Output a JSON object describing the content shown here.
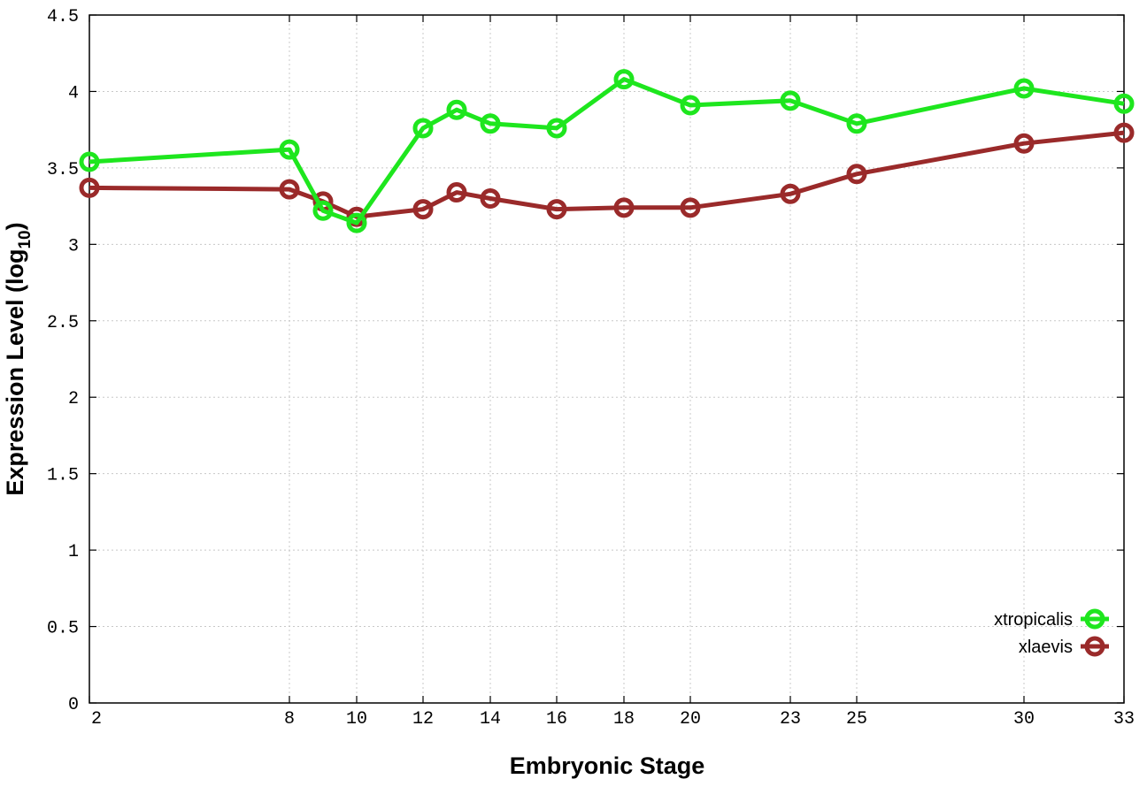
{
  "chart_data": {
    "type": "line",
    "xlabel": "Embryonic Stage",
    "ylabel": "Expression Level (log",
    "ylabel_subscript": "10",
    "ylabel_suffix": ")",
    "x_ticks": [
      "2",
      "8",
      "10",
      "12",
      "14",
      "16",
      "18",
      "20",
      "23",
      "25",
      "30",
      "33"
    ],
    "y_ticks": [
      "0",
      "0.5",
      "1",
      "1.5",
      "2",
      "2.5",
      "3",
      "3.5",
      "4",
      "4.5"
    ],
    "ylim": [
      0,
      4.5
    ],
    "grid": true,
    "legend_position": "bottom-right",
    "series": [
      {
        "name": "xtropicalis",
        "color": "#1ee61e",
        "points": [
          [
            2,
            3.54
          ],
          [
            8,
            3.62
          ],
          [
            9,
            3.22
          ],
          [
            10,
            3.14
          ],
          [
            12,
            3.76
          ],
          [
            13,
            3.88
          ],
          [
            14,
            3.79
          ],
          [
            16,
            3.76
          ],
          [
            18,
            4.08
          ],
          [
            20,
            3.91
          ],
          [
            23,
            3.94
          ],
          [
            25,
            3.79
          ],
          [
            30,
            4.02
          ],
          [
            33,
            3.92
          ]
        ]
      },
      {
        "name": "xlaevis",
        "color": "#9a2a2a",
        "points": [
          [
            2,
            3.37
          ],
          [
            8,
            3.36
          ],
          [
            9,
            3.28
          ],
          [
            10,
            3.18
          ],
          [
            12,
            3.23
          ],
          [
            13,
            3.34
          ],
          [
            14,
            3.3
          ],
          [
            16,
            3.23
          ],
          [
            18,
            3.24
          ],
          [
            20,
            3.24
          ],
          [
            23,
            3.33
          ],
          [
            25,
            3.46
          ],
          [
            30,
            3.66
          ],
          [
            33,
            3.73
          ]
        ]
      }
    ]
  }
}
